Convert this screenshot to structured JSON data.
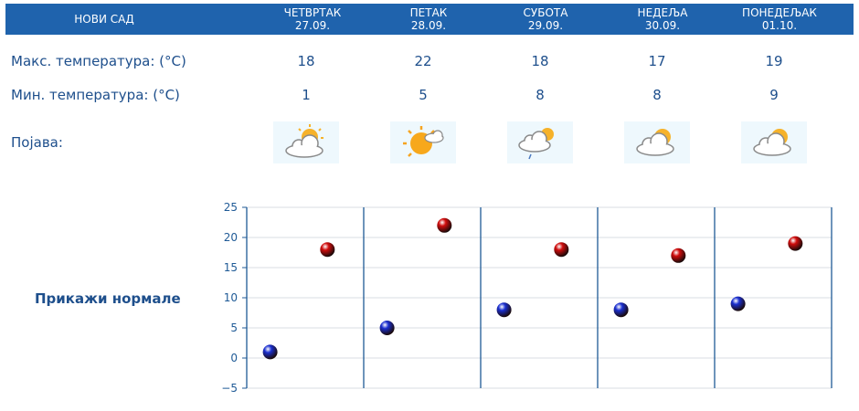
{
  "header": {
    "city": "НОВИ САД",
    "days": [
      {
        "name": "ЧЕТВРТАК",
        "date": "27.09."
      },
      {
        "name": "ПЕТАК",
        "date": "28.09."
      },
      {
        "name": "СУБОТА",
        "date": "29.09."
      },
      {
        "name": "НЕДЕЉА",
        "date": "30.09."
      },
      {
        "name": "ПОНЕДЕЉАК",
        "date": "01.10."
      }
    ]
  },
  "rows": {
    "max_label": "Макс. температура: (°C)",
    "min_label": "Мин. температура: (°C)",
    "weather_label": "Појава:",
    "max": [
      "18",
      "22",
      "18",
      "17",
      "19"
    ],
    "min": [
      "1",
      "5",
      "8",
      "8",
      "9"
    ],
    "icons": [
      "partly-cloudy-icon",
      "mostly-sunny-icon",
      "cloudy-light-rain-icon",
      "partly-cloudy-icon",
      "partly-cloudy-icon"
    ]
  },
  "normals_link": "Прикажи нормале",
  "chart_data": {
    "type": "scatter",
    "categories": [
      "27.09.",
      "28.09.",
      "29.09.",
      "30.09.",
      "01.10."
    ],
    "ylim": [
      -5,
      25
    ],
    "yticks": [
      "25",
      "20",
      "15",
      "10",
      "5",
      "0",
      "−5"
    ],
    "series": [
      {
        "values": [
          1,
          5,
          8,
          8,
          9
        ],
        "color": "#1a2fd0"
      },
      {
        "values": [
          18,
          22,
          18,
          17,
          19
        ],
        "color": "#d00c0c"
      }
    ],
    "colors": {
      "axis": "#1f5a96",
      "grid": "#d9dde3"
    }
  }
}
